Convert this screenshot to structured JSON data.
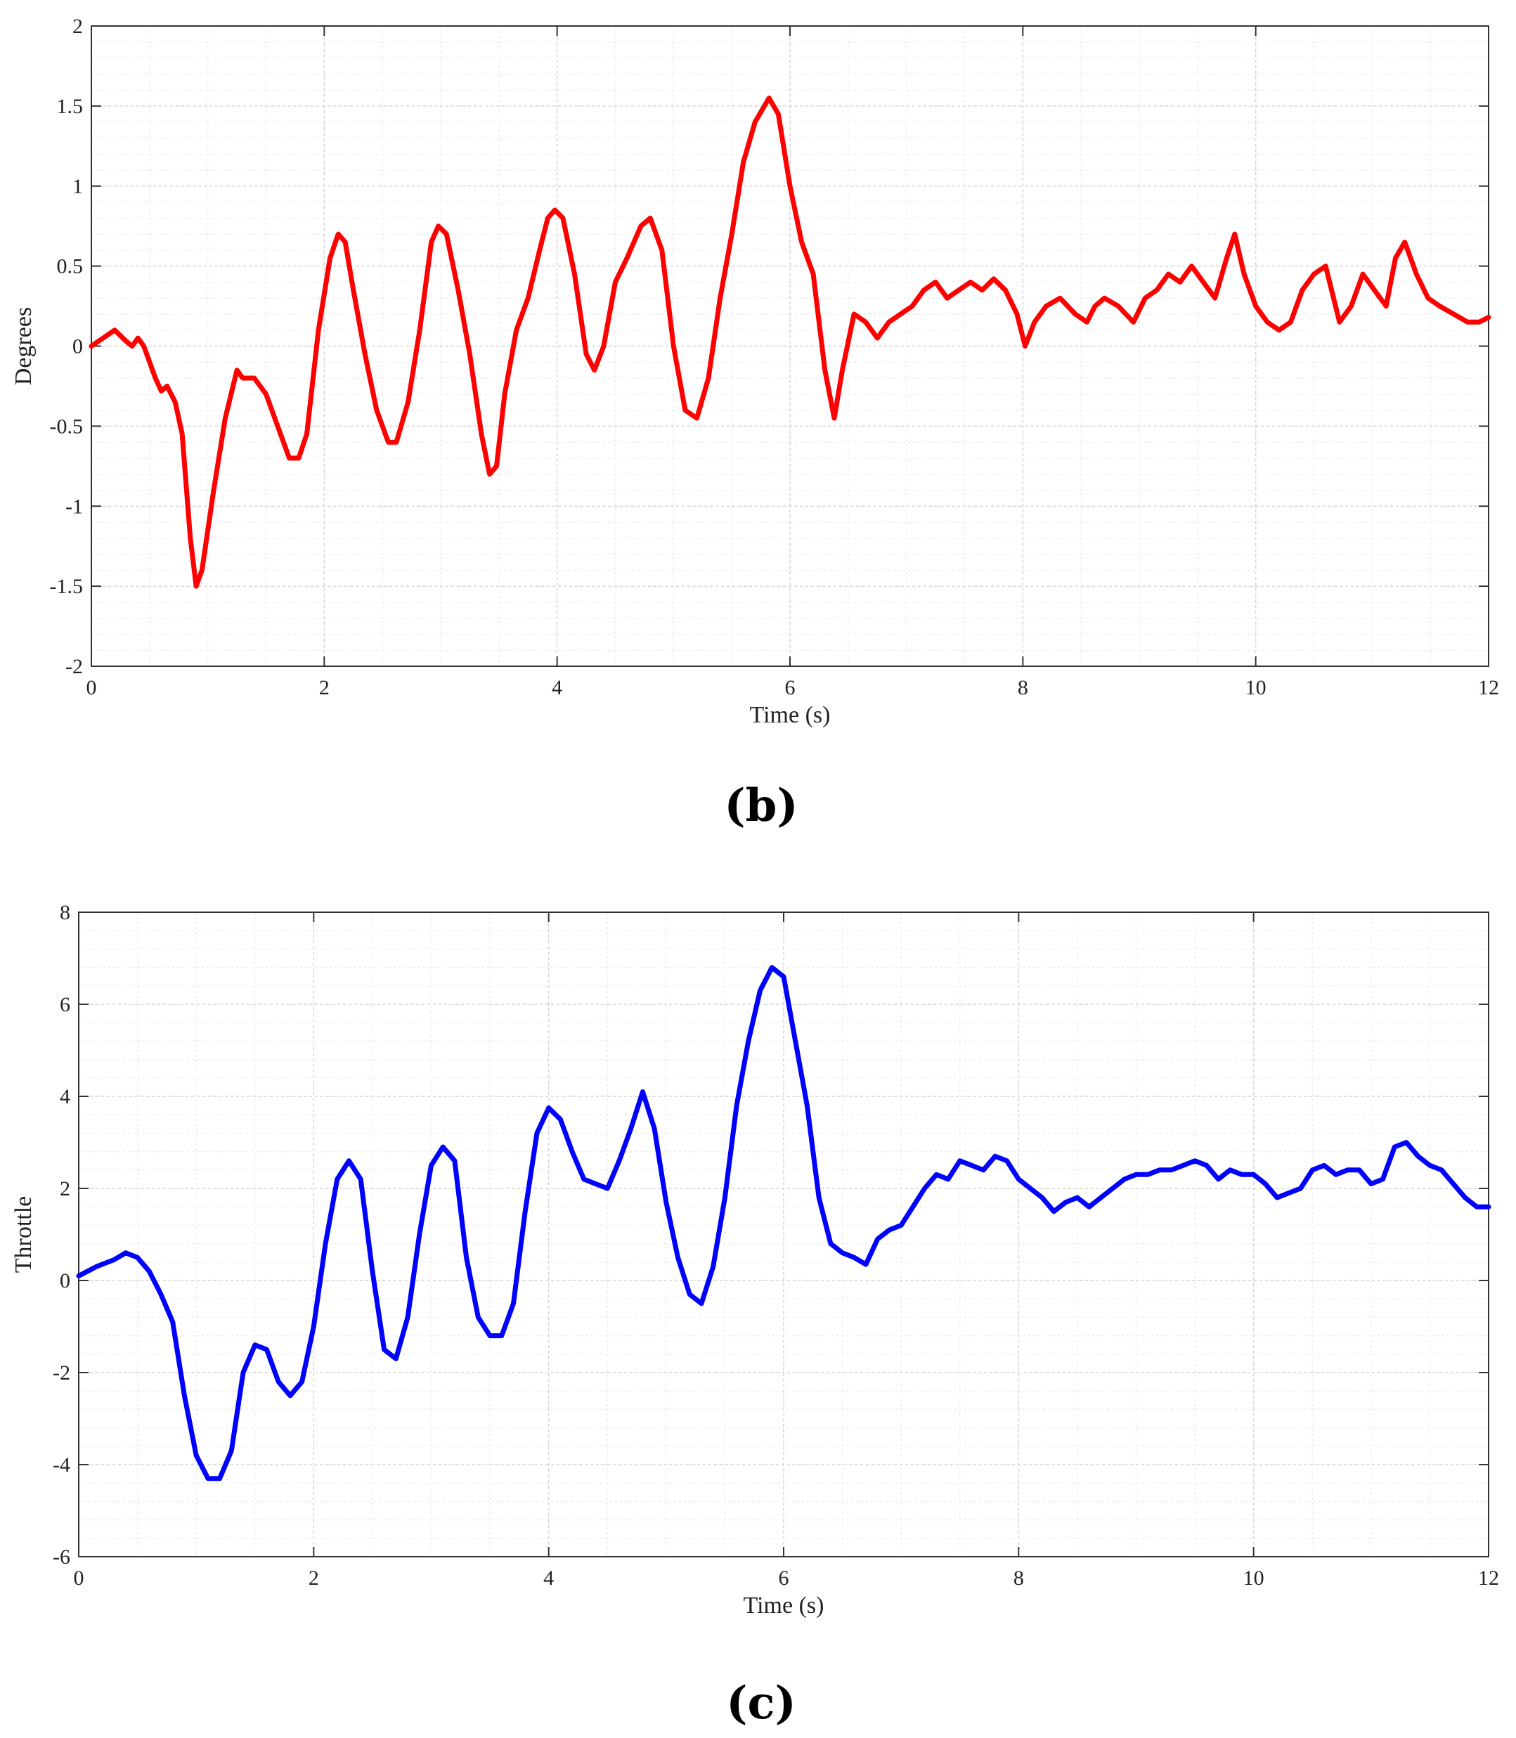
{
  "chart_data": [
    {
      "type": "line",
      "panel_label": "(b)",
      "xlabel": "Time (s)",
      "ylabel": "Degrees",
      "xlim": [
        0,
        12
      ],
      "ylim": [
        -2,
        2
      ],
      "xticks": [
        0,
        2,
        4,
        6,
        8,
        10,
        12
      ],
      "yticks": [
        -2,
        -1.5,
        -1,
        -0.5,
        0,
        0.5,
        1,
        1.5,
        2
      ],
      "grid": true,
      "series": [
        {
          "color": "#ff0000",
          "x": [
            0,
            0.1,
            0.2,
            0.3,
            0.35,
            0.4,
            0.45,
            0.55,
            0.6,
            0.65,
            0.72,
            0.78,
            0.85,
            0.9,
            0.95,
            1.05,
            1.15,
            1.25,
            1.3,
            1.4,
            1.5,
            1.6,
            1.7,
            1.78,
            1.85,
            1.95,
            2.05,
            2.12,
            2.18,
            2.25,
            2.35,
            2.45,
            2.55,
            2.62,
            2.72,
            2.82,
            2.92,
            2.98,
            3.05,
            3.15,
            3.25,
            3.35,
            3.42,
            3.48,
            3.55,
            3.65,
            3.75,
            3.85,
            3.92,
            3.98,
            4.05,
            4.15,
            4.25,
            4.32,
            4.4,
            4.5,
            4.6,
            4.72,
            4.8,
            4.9,
            5.0,
            5.1,
            5.2,
            5.3,
            5.4,
            5.5,
            5.6,
            5.7,
            5.82,
            5.9,
            6.0,
            6.1,
            6.2,
            6.3,
            6.38,
            6.45,
            6.55,
            6.65,
            6.75,
            6.85,
            6.95,
            7.05,
            7.15,
            7.25,
            7.35,
            7.45,
            7.55,
            7.65,
            7.75,
            7.85,
            7.95,
            8.02,
            8.1,
            8.2,
            8.32,
            8.45,
            8.55,
            8.62,
            8.7,
            8.82,
            8.95,
            9.05,
            9.15,
            9.25,
            9.35,
            9.45,
            9.55,
            9.65,
            9.75,
            9.82,
            9.9,
            10.0,
            10.1,
            10.2,
            10.3,
            10.4,
            10.5,
            10.6,
            10.72,
            10.82,
            10.92,
            11.02,
            11.12,
            11.2,
            11.28,
            11.38,
            11.48,
            11.58,
            11.7,
            11.82,
            11.92,
            12.0
          ],
          "y": [
            0.0,
            0.05,
            0.1,
            0.03,
            0.0,
            0.05,
            0.0,
            -0.2,
            -0.28,
            -0.25,
            -0.35,
            -0.55,
            -1.2,
            -1.5,
            -1.4,
            -0.9,
            -0.45,
            -0.15,
            -0.2,
            -0.2,
            -0.3,
            -0.5,
            -0.7,
            -0.7,
            -0.55,
            0.1,
            0.55,
            0.7,
            0.65,
            0.35,
            -0.05,
            -0.4,
            -0.6,
            -0.6,
            -0.35,
            0.1,
            0.65,
            0.75,
            0.7,
            0.35,
            -0.05,
            -0.55,
            -0.8,
            -0.75,
            -0.3,
            0.1,
            0.3,
            0.6,
            0.8,
            0.85,
            0.8,
            0.45,
            -0.05,
            -0.15,
            0.0,
            0.4,
            0.55,
            0.75,
            0.8,
            0.6,
            0.0,
            -0.4,
            -0.45,
            -0.2,
            0.3,
            0.7,
            1.15,
            1.4,
            1.55,
            1.45,
            1.0,
            0.65,
            0.45,
            -0.15,
            -0.45,
            -0.15,
            0.2,
            0.15,
            0.05,
            0.15,
            0.2,
            0.25,
            0.35,
            0.4,
            0.3,
            0.35,
            0.4,
            0.35,
            0.42,
            0.35,
            0.2,
            0.0,
            0.15,
            0.25,
            0.3,
            0.2,
            0.15,
            0.25,
            0.3,
            0.25,
            0.15,
            0.3,
            0.35,
            0.45,
            0.4,
            0.5,
            0.4,
            0.3,
            0.55,
            0.7,
            0.45,
            0.25,
            0.15,
            0.1,
            0.15,
            0.35,
            0.45,
            0.5,
            0.15,
            0.25,
            0.45,
            0.35,
            0.25,
            0.55,
            0.65,
            0.45,
            0.3,
            0.25,
            0.2,
            0.15,
            0.15,
            0.18
          ]
        }
      ]
    },
    {
      "type": "line",
      "panel_label": "(c)",
      "xlabel": "Time (s)",
      "ylabel": "Throttle",
      "xlim": [
        0,
        12
      ],
      "ylim": [
        -6,
        8
      ],
      "xticks": [
        0,
        2,
        4,
        6,
        8,
        10,
        12
      ],
      "yticks": [
        -6,
        -4,
        -2,
        0,
        2,
        4,
        6,
        8
      ],
      "grid": true,
      "series": [
        {
          "color": "#0000ff",
          "x": [
            0,
            0.15,
            0.3,
            0.4,
            0.5,
            0.6,
            0.7,
            0.8,
            0.9,
            1.0,
            1.1,
            1.2,
            1.3,
            1.4,
            1.5,
            1.6,
            1.7,
            1.8,
            1.9,
            2.0,
            2.1,
            2.2,
            2.3,
            2.4,
            2.5,
            2.6,
            2.7,
            2.8,
            2.9,
            3.0,
            3.1,
            3.2,
            3.3,
            3.4,
            3.5,
            3.6,
            3.7,
            3.8,
            3.9,
            4.0,
            4.1,
            4.2,
            4.3,
            4.4,
            4.5,
            4.6,
            4.7,
            4.8,
            4.9,
            5.0,
            5.1,
            5.2,
            5.3,
            5.4,
            5.5,
            5.6,
            5.7,
            5.8,
            5.9,
            6.0,
            6.1,
            6.2,
            6.3,
            6.4,
            6.5,
            6.6,
            6.7,
            6.8,
            6.9,
            7.0,
            7.1,
            7.2,
            7.3,
            7.4,
            7.5,
            7.6,
            7.7,
            7.8,
            7.9,
            8.0,
            8.1,
            8.2,
            8.3,
            8.4,
            8.5,
            8.6,
            8.7,
            8.8,
            8.9,
            9.0,
            9.1,
            9.2,
            9.3,
            9.4,
            9.5,
            9.6,
            9.7,
            9.8,
            9.9,
            10.0,
            10.1,
            10.2,
            10.3,
            10.4,
            10.5,
            10.6,
            10.7,
            10.8,
            10.9,
            11.0,
            11.1,
            11.2,
            11.3,
            11.4,
            11.5,
            11.6,
            11.7,
            11.8,
            11.9,
            12.0
          ],
          "y": [
            0.1,
            0.3,
            0.45,
            0.6,
            0.5,
            0.2,
            -0.3,
            -0.9,
            -2.5,
            -3.8,
            -4.3,
            -4.3,
            -3.7,
            -2.0,
            -1.4,
            -1.5,
            -2.2,
            -2.5,
            -2.2,
            -1.0,
            0.8,
            2.2,
            2.6,
            2.2,
            0.2,
            -1.5,
            -1.7,
            -0.8,
            1.0,
            2.5,
            2.9,
            2.6,
            0.5,
            -0.8,
            -1.2,
            -1.2,
            -0.5,
            1.5,
            3.2,
            3.75,
            3.5,
            2.8,
            2.2,
            2.1,
            2.0,
            2.6,
            3.3,
            4.1,
            3.3,
            1.7,
            0.5,
            -0.3,
            -0.5,
            0.3,
            1.8,
            3.8,
            5.2,
            6.3,
            6.8,
            6.6,
            5.2,
            3.8,
            1.8,
            0.8,
            0.6,
            0.5,
            0.35,
            0.9,
            1.1,
            1.2,
            1.6,
            2.0,
            2.3,
            2.2,
            2.6,
            2.5,
            2.4,
            2.7,
            2.6,
            2.2,
            2.0,
            1.8,
            1.5,
            1.7,
            1.8,
            1.6,
            1.8,
            2.0,
            2.2,
            2.3,
            2.3,
            2.4,
            2.4,
            2.5,
            2.6,
            2.5,
            2.2,
            2.4,
            2.3,
            2.3,
            2.1,
            1.8,
            1.9,
            2.0,
            2.4,
            2.5,
            2.3,
            2.4,
            2.4,
            2.1,
            2.2,
            2.9,
            3.0,
            2.7,
            2.5,
            2.4,
            2.1,
            1.8,
            1.6,
            1.6
          ]
        }
      ]
    }
  ]
}
